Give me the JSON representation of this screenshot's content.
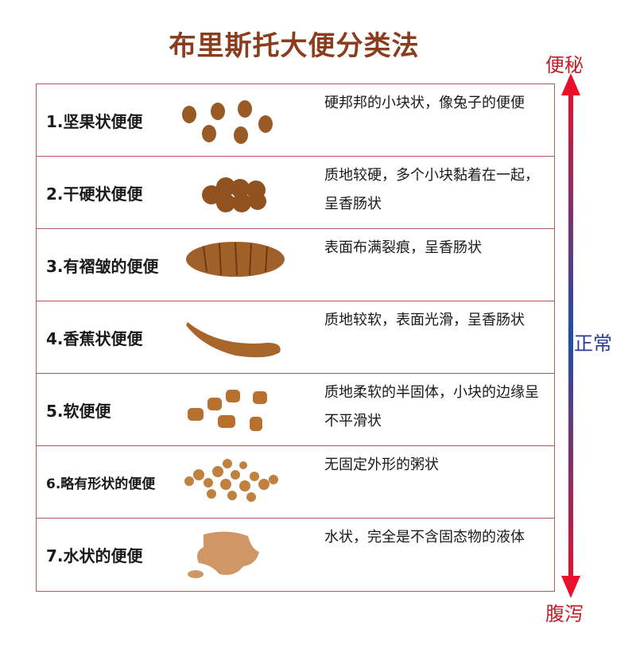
{
  "title": "布里斯托大便分类法",
  "scale": {
    "top": "便秘",
    "middle": "正常",
    "bottom": "腹泻",
    "colors": {
      "top": "#e8102a",
      "middle": "#1a4fb0",
      "bottom": "#e8102a"
    }
  },
  "rows": [
    {
      "name": "1.坚果状便便",
      "desc": "硬邦邦的小块状，像兔子的便便"
    },
    {
      "name": "2.干硬状便便",
      "desc": "质地较硬，多个小块黏着在一起，呈香肠状"
    },
    {
      "name": "3.有褶皱的便便",
      "desc": "表面布满裂痕，呈香肠状"
    },
    {
      "name": "4.香蕉状便便",
      "desc": "质地较软，表面光滑，呈香肠状"
    },
    {
      "name": "5.软便便",
      "desc": "质地柔软的半固体，小块的边缘呈不平滑状"
    },
    {
      "name": "6.略有形状的便便",
      "desc": "无固定外形的粥状"
    },
    {
      "name": "7.水状的便便",
      "desc": "水状，完全是不含固态物的液体"
    }
  ]
}
